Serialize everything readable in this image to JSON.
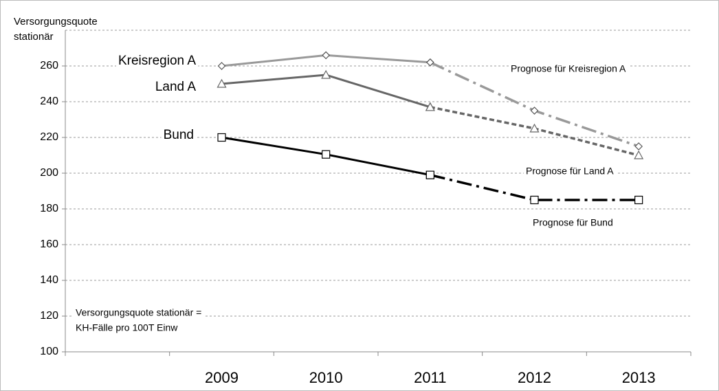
{
  "chart_data": {
    "type": "line",
    "y_label": [
      "Versorgungsquote",
      "stationär"
    ],
    "annotation": [
      "Versorgungsquote stationär =",
      "KH-Fälle pro 100T Einw"
    ],
    "categories": [
      null,
      "2009",
      "2010",
      "2011",
      "2012",
      "2013"
    ],
    "series": [
      {
        "name": "Kreisregion A",
        "color": "#999999",
        "marker": "diamond",
        "dash": "solid",
        "values": [
          null,
          260,
          266,
          262,
          null,
          null
        ]
      },
      {
        "name": "Land A",
        "color": "#666666",
        "marker": "triangle",
        "dash": "solid",
        "values": [
          null,
          250,
          255,
          237,
          null,
          null
        ]
      },
      {
        "name": "Bund",
        "color": "#000000",
        "marker": "square",
        "dash": "solid",
        "values": [
          null,
          220,
          210.5,
          199,
          null,
          null
        ]
      },
      {
        "name": "Prognose für Kreisregion A",
        "color": "#999999",
        "marker": "diamond",
        "dash": "dashdot",
        "values": [
          null,
          null,
          null,
          262,
          235,
          215
        ]
      },
      {
        "name": "Prognose für Land A",
        "color": "#666666",
        "marker": "triangle",
        "dash": "dash",
        "values": [
          null,
          null,
          null,
          237,
          225,
          210
        ]
      },
      {
        "name": "Prognose für Bund",
        "color": "#000000",
        "marker": "square",
        "dash": "dashdot",
        "values": [
          null,
          null,
          null,
          199,
          185,
          185
        ]
      }
    ],
    "ylim": [
      100,
      280
    ],
    "yticks": [
      100,
      120,
      140,
      160,
      180,
      200,
      220,
      240,
      260
    ],
    "grid": true
  }
}
